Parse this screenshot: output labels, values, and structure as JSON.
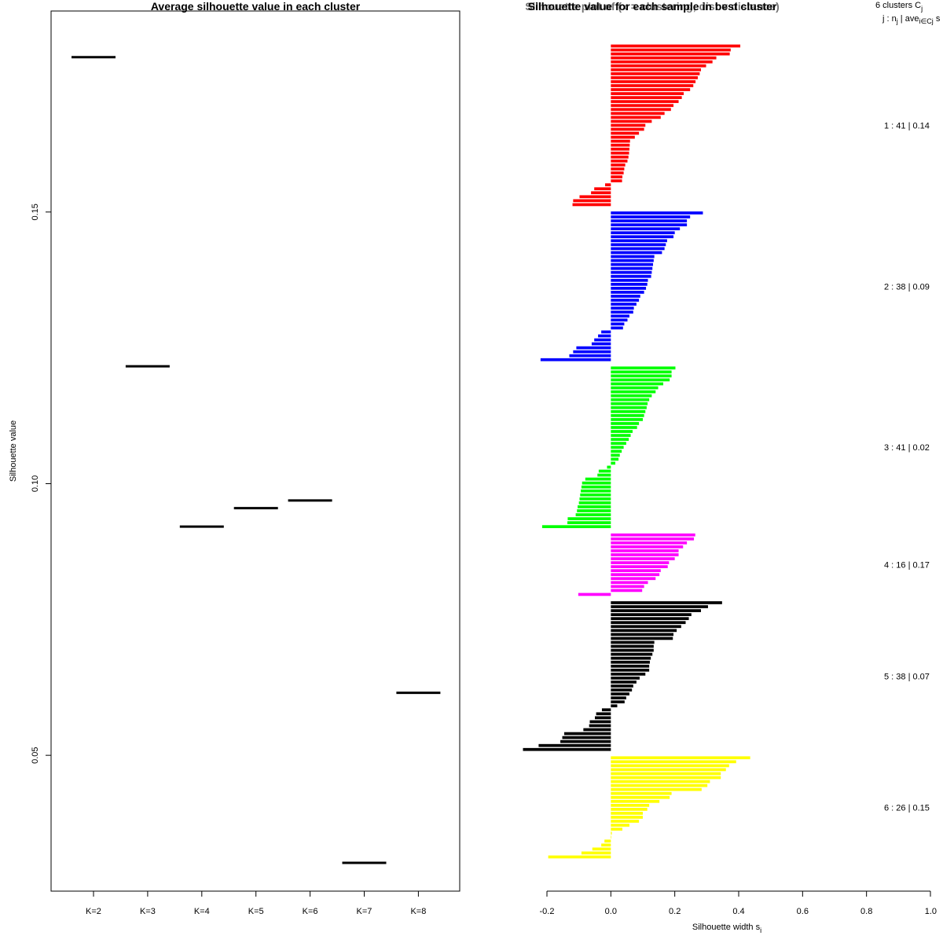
{
  "chart_data": [
    {
      "type": "scatter",
      "title": "Average silhouette value in each cluster",
      "xlabel": "",
      "ylabel": "Silhouette value",
      "categories": [
        "K=2",
        "K=3",
        "K=4",
        "K=5",
        "K=6",
        "K=7",
        "K=8"
      ],
      "values": [
        0.1785,
        0.1216,
        0.0921,
        0.0955,
        0.0969,
        0.0302,
        0.0615
      ],
      "yticks": [
        "0.05",
        "0.10",
        "0.15"
      ],
      "ytick_values": [
        0.05,
        0.1,
        0.15
      ],
      "ylim": [
        0.025,
        0.187
      ]
    },
    {
      "type": "bar",
      "orientation": "horizontal",
      "title": "Silhouette value for each sample in best cluster",
      "title_overlap": "Silhouette plot of (x = clustering, dist = distance)",
      "xlabel": "Silhouette width s",
      "xlabel_subscript": "i",
      "xticks": [
        "-0.2",
        "0.0",
        "0.2",
        "0.4",
        "0.6",
        "0.8",
        "1.0"
      ],
      "xtick_values": [
        -0.2,
        0.0,
        0.2,
        0.4,
        0.6,
        0.8,
        1.0
      ],
      "xlim": [
        -0.2,
        1.0
      ],
      "legend_header": {
        "line1_prefix": "6 clusters C",
        "line1_sub": "j",
        "line2_a": "j :  n",
        "line2_a_sub": "j",
        "line2_b": " | ave",
        "line2_b_sub": "i∈Cj",
        "line2_c": " s"
      },
      "clusters": [
        {
          "label": "1 :  41  |  0.14",
          "color": "#ff0000",
          "values": [
            0.405,
            0.375,
            0.372,
            0.33,
            0.318,
            0.298,
            0.282,
            0.278,
            0.272,
            0.265,
            0.258,
            0.248,
            0.228,
            0.222,
            0.212,
            0.196,
            0.188,
            0.168,
            0.156,
            0.128,
            0.108,
            0.104,
            0.088,
            0.075,
            0.06,
            0.059,
            0.058,
            0.057,
            0.055,
            0.052,
            0.045,
            0.042,
            0.04,
            0.036,
            0.035,
            -0.018,
            -0.052,
            -0.062,
            -0.098,
            -0.118,
            -0.12
          ]
        },
        {
          "label": "2 :  38  |  0.09",
          "color": "#0000ff",
          "values": [
            0.288,
            0.248,
            0.238,
            0.238,
            0.216,
            0.2,
            0.196,
            0.176,
            0.172,
            0.168,
            0.16,
            0.136,
            0.134,
            0.132,
            0.13,
            0.128,
            0.126,
            0.116,
            0.114,
            0.11,
            0.104,
            0.092,
            0.088,
            0.08,
            0.072,
            0.07,
            0.058,
            0.052,
            0.042,
            0.038,
            -0.03,
            -0.04,
            -0.052,
            -0.06,
            -0.108,
            -0.118,
            -0.13,
            -0.22
          ]
        },
        {
          "label": "3 :  41  |  0.02",
          "color": "#00ff00",
          "values": [
            0.202,
            0.19,
            0.19,
            0.184,
            0.164,
            0.148,
            0.14,
            0.128,
            0.12,
            0.115,
            0.112,
            0.108,
            0.104,
            0.1,
            0.088,
            0.082,
            0.068,
            0.062,
            0.056,
            0.048,
            0.04,
            0.034,
            0.028,
            0.024,
            0.014,
            -0.012,
            -0.038,
            -0.042,
            -0.08,
            -0.09,
            -0.092,
            -0.094,
            -0.096,
            -0.098,
            -0.1,
            -0.104,
            -0.106,
            -0.11,
            -0.135,
            -0.136,
            -0.215
          ]
        },
        {
          "label": "4 :  16  |  0.17",
          "color": "#ff00ff",
          "values": [
            0.264,
            0.26,
            0.238,
            0.226,
            0.212,
            0.212,
            0.2,
            0.182,
            0.178,
            0.156,
            0.152,
            0.14,
            0.116,
            0.104,
            0.098,
            -0.102
          ]
        },
        {
          "label": "5 :  38  |  0.07",
          "color": "#000000",
          "values": [
            0.348,
            0.304,
            0.282,
            0.252,
            0.244,
            0.234,
            0.22,
            0.206,
            0.196,
            0.194,
            0.136,
            0.134,
            0.134,
            0.13,
            0.125,
            0.122,
            0.12,
            0.12,
            0.108,
            0.09,
            0.08,
            0.07,
            0.066,
            0.058,
            0.048,
            0.043,
            0.02,
            -0.028,
            -0.046,
            -0.05,
            -0.066,
            -0.068,
            -0.086,
            -0.146,
            -0.152,
            -0.158,
            -0.226,
            -0.275
          ]
        },
        {
          "label": "6 :  26  |  0.15",
          "color": "#ffff00",
          "values": [
            0.436,
            0.392,
            0.37,
            0.36,
            0.344,
            0.344,
            0.31,
            0.302,
            0.284,
            0.19,
            0.184,
            0.152,
            0.12,
            0.114,
            0.1,
            0.1,
            0.088,
            0.058,
            0.036,
            0.003,
            0.001,
            -0.02,
            -0.03,
            -0.058,
            -0.092,
            -0.196
          ]
        }
      ]
    }
  ]
}
